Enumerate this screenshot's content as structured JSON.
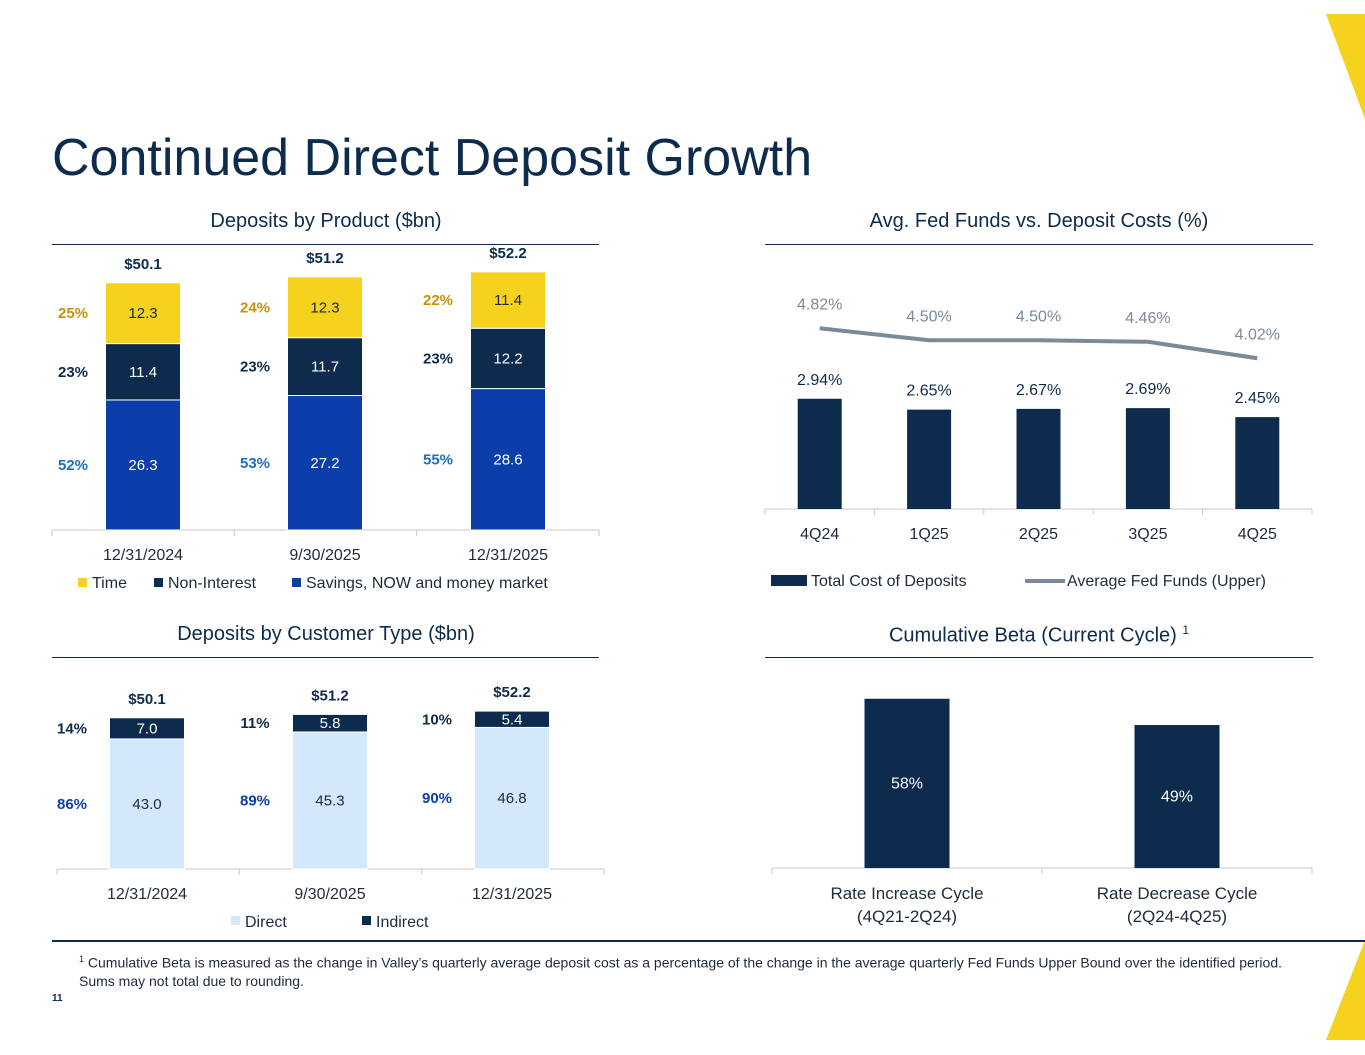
{
  "page": {
    "title": "Continued Direct Deposit Growth",
    "page_number": "11",
    "footnote_marker": "1",
    "footnote": "Cumulative Beta is measured as the change in Valley’s quarterly average deposit cost as a percentage of the change in the average quarterly Fed Funds Upper Bound over the identified period. Sums may not total due to rounding.",
    "accent_color": "#f5d21e",
    "navy": "#0d2b4c"
  },
  "chart_data": [
    {
      "id": "deposits-by-product",
      "type": "bar",
      "stacked": true,
      "title": "Deposits by Product ($bn)",
      "categories": [
        "12/31/2024",
        "9/30/2025",
        "12/31/2025"
      ],
      "totals": [
        "$50.1",
        "$51.2",
        "$52.2"
      ],
      "series": [
        {
          "name": "Savings, NOW and money market",
          "color": "#0b3ea8",
          "label_color": "#1a6ec4",
          "values": [
            26.3,
            27.2,
            28.6
          ],
          "value_labels": [
            "26.3",
            "27.2",
            "28.6"
          ],
          "pct_labels": [
            "52%",
            "53%",
            "55%"
          ]
        },
        {
          "name": "Non-Interest",
          "color": "#0d2b4c",
          "label_color": "#0d2b4c",
          "values": [
            11.4,
            11.7,
            12.2
          ],
          "value_labels": [
            "11.4",
            "11.7",
            "12.2"
          ],
          "pct_labels": [
            "23%",
            "23%",
            "23%"
          ]
        },
        {
          "name": "Time",
          "color": "#f5d21e",
          "label_color": "#c8900a",
          "values": [
            12.3,
            12.3,
            11.4
          ],
          "value_labels": [
            "12.3",
            "12.3",
            "11.4"
          ],
          "pct_labels": [
            "25%",
            "24%",
            "22%"
          ]
        }
      ],
      "legend": [
        "Time",
        "Non-Interest",
        "Savings, NOW and money market"
      ],
      "ylim": [
        0,
        54
      ]
    },
    {
      "id": "fed-funds-vs-deposit-costs",
      "type": "bar+line",
      "title": "Avg. Fed Funds vs. Deposit Costs (%)",
      "categories": [
        "4Q24",
        "1Q25",
        "2Q25",
        "3Q25",
        "4Q25"
      ],
      "series": [
        {
          "name": "Total Cost of Deposits",
          "kind": "bar",
          "color": "#0d2b4c",
          "values": [
            2.94,
            2.65,
            2.67,
            2.69,
            2.45
          ],
          "value_labels": [
            "2.94%",
            "2.65%",
            "2.67%",
            "2.69%",
            "2.45%"
          ]
        },
        {
          "name": "Average Fed Funds (Upper)",
          "kind": "line",
          "color": "#7a8a99",
          "values": [
            4.82,
            4.5,
            4.5,
            4.46,
            4.02
          ],
          "value_labels": [
            "4.82%",
            "4.50%",
            "4.50%",
            "4.46%",
            "4.02%"
          ]
        }
      ],
      "legend": [
        "Total Cost of Deposits",
        "Average Fed Funds (Upper)"
      ],
      "ylim": [
        0,
        6.0
      ]
    },
    {
      "id": "deposits-by-customer-type",
      "type": "bar",
      "stacked": true,
      "title": "Deposits by Customer Type ($bn)",
      "categories": [
        "12/31/2024",
        "9/30/2025",
        "12/31/2025"
      ],
      "totals": [
        "$50.1",
        "$51.2",
        "$52.2"
      ],
      "series": [
        {
          "name": "Direct",
          "color": "#d3e9fb",
          "label_color": "#0b3ea8",
          "text_color": "#1d2b3a",
          "values": [
            43.0,
            45.3,
            46.8
          ],
          "value_labels": [
            "43.0",
            "45.3",
            "46.8"
          ],
          "pct_labels": [
            "86%",
            "89%",
            "90%"
          ]
        },
        {
          "name": "Indirect",
          "color": "#0d2b4c",
          "label_color": "#0d2b4c",
          "text_color": "#ffffff",
          "values": [
            7.0,
            5.8,
            5.4
          ],
          "value_labels": [
            "7.0",
            "5.8",
            "5.4"
          ],
          "pct_labels": [
            "14%",
            "11%",
            "10%"
          ]
        }
      ],
      "legend": [
        "Direct",
        "Indirect"
      ],
      "ylim": [
        0,
        80
      ]
    },
    {
      "id": "cumulative-beta",
      "type": "bar",
      "title": "Cumulative Beta (Current Cycle)",
      "title_superscript": "1",
      "categories": [
        [
          "Rate Increase Cycle",
          "(4Q21-2Q24)"
        ],
        [
          "Rate Decrease Cycle",
          "(2Q24-4Q25)"
        ]
      ],
      "values": [
        58,
        49
      ],
      "value_labels": [
        "58%",
        "49%"
      ],
      "color": "#0d2b4c",
      "ylim": [
        0,
        61
      ]
    }
  ]
}
